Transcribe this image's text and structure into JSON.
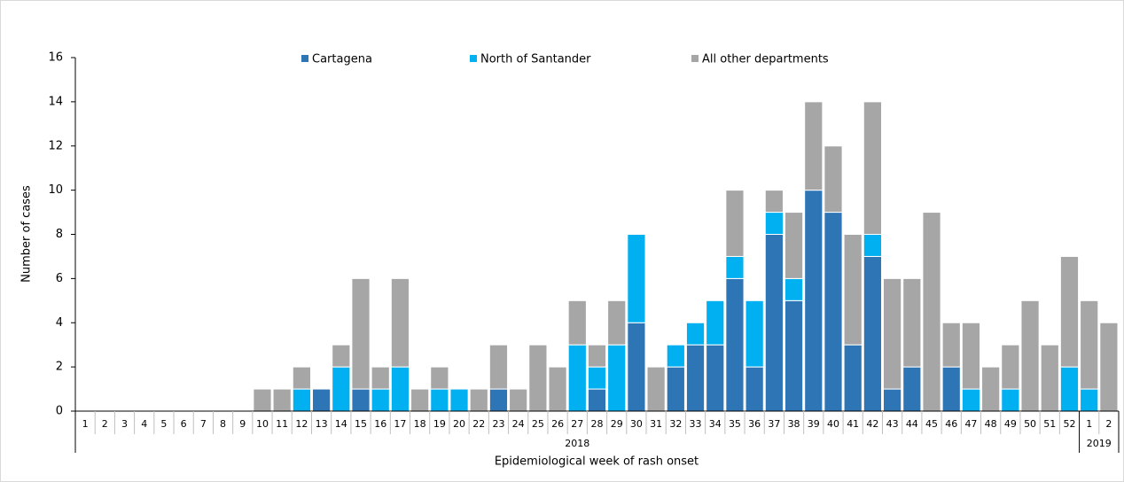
{
  "chart_data": {
    "type": "stacked_bar",
    "y_label": "Number of cases",
    "x_label": "Epidemiological week of rash onset",
    "category_groups": [
      {
        "label": "2018",
        "categories": [
          "1",
          "2",
          "3",
          "4",
          "5",
          "6",
          "7",
          "8",
          "9",
          "10",
          "11",
          "12",
          "13",
          "14",
          "15",
          "16",
          "17",
          "18",
          "19",
          "20",
          "22",
          "23",
          "24",
          "25",
          "26",
          "27",
          "28",
          "29",
          "30",
          "31",
          "32",
          "33",
          "34",
          "35",
          "36",
          "37",
          "38",
          "39",
          "40",
          "41",
          "42",
          "43",
          "44",
          "45",
          "46",
          "47",
          "48",
          "49",
          "50",
          "51",
          "52"
        ]
      },
      {
        "label": "2019",
        "categories": [
          "1",
          "2"
        ]
      }
    ],
    "series": [
      {
        "name": "Cartagena",
        "color": "#2e75b6",
        "values": [
          0,
          0,
          0,
          0,
          0,
          0,
          0,
          0,
          0,
          0,
          0,
          0,
          1,
          0,
          1,
          0,
          0,
          0,
          0,
          0,
          0,
          1,
          0,
          0,
          0,
          0,
          1,
          0,
          4,
          0,
          2,
          3,
          3,
          6,
          2,
          8,
          5,
          10,
          9,
          3,
          7,
          1,
          2,
          0,
          2,
          0,
          0,
          0,
          0,
          0,
          0,
          0,
          0
        ]
      },
      {
        "name": "North of Santander",
        "color": "#00b0f0",
        "values": [
          0,
          0,
          0,
          0,
          0,
          0,
          0,
          0,
          0,
          0,
          0,
          1,
          0,
          2,
          0,
          1,
          2,
          0,
          1,
          1,
          0,
          0,
          0,
          0,
          0,
          3,
          1,
          3,
          4,
          0,
          1,
          1,
          2,
          1,
          3,
          1,
          1,
          0,
          0,
          0,
          1,
          0,
          0,
          0,
          0,
          1,
          0,
          1,
          0,
          0,
          2,
          1,
          0
        ]
      },
      {
        "name": "All other departments",
        "color": "#a6a6a6",
        "values": [
          0,
          0,
          0,
          0,
          0,
          0,
          0,
          0,
          0,
          1,
          1,
          1,
          0,
          1,
          5,
          1,
          4,
          1,
          1,
          0,
          1,
          2,
          1,
          3,
          2,
          2,
          1,
          2,
          0,
          2,
          0,
          0,
          0,
          3,
          0,
          1,
          3,
          4,
          3,
          5,
          6,
          5,
          4,
          9,
          2,
          3,
          2,
          2,
          5,
          3,
          5,
          4,
          4
        ]
      }
    ],
    "ylim": [
      0,
      16
    ],
    "yticks": [
      0,
      2,
      4,
      6,
      8,
      10,
      12,
      14,
      16
    ]
  }
}
